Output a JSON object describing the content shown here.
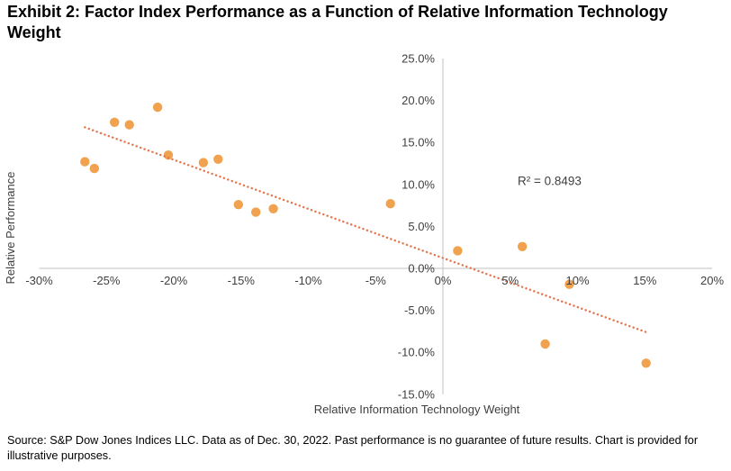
{
  "title": "Exhibit 2: Factor Index Performance as a Function of Relative Information Technology Weight",
  "source_note": "Source: S&P Dow Jones Indices LLC. Data as of Dec. 30, 2022. Past performance is no guarantee of future results. Chart is provided for illustrative purposes.",
  "chart_data": {
    "type": "scatter",
    "title": "Exhibit 2: Factor Index Performance as a Function of Relative Information Technology Weight",
    "xlabel": "Relative Information Technology Weight",
    "ylabel": "Relative Performance",
    "xlim": [
      -30,
      20
    ],
    "ylim": [
      -15,
      25
    ],
    "grid": false,
    "legend": "none",
    "x_ticks": [
      {
        "value": -30,
        "label": "-30%"
      },
      {
        "value": -25,
        "label": "-25%"
      },
      {
        "value": -20,
        "label": "-20%"
      },
      {
        "value": -15,
        "label": "-15%"
      },
      {
        "value": -10,
        "label": "-10%"
      },
      {
        "value": -5,
        "label": "-5%"
      },
      {
        "value": 0,
        "label": "0%"
      },
      {
        "value": 5,
        "label": "5%"
      },
      {
        "value": 10,
        "label": "10%"
      },
      {
        "value": 15,
        "label": "15%"
      },
      {
        "value": 20,
        "label": "20%"
      }
    ],
    "y_ticks": [
      {
        "value": 25,
        "label": "25.0%"
      },
      {
        "value": 20,
        "label": "20.0%"
      },
      {
        "value": 15,
        "label": "15.0%"
      },
      {
        "value": 10,
        "label": "10.0%"
      },
      {
        "value": 5,
        "label": "5.0%"
      },
      {
        "value": 0,
        "label": "0.0%"
      },
      {
        "value": -5,
        "label": "-5.0%"
      },
      {
        "value": -10,
        "label": "-10.0%"
      },
      {
        "value": -15,
        "label": "-15.0%"
      }
    ],
    "points": [
      {
        "x": -26.6,
        "y": 12.7
      },
      {
        "x": -25.9,
        "y": 11.9
      },
      {
        "x": -24.4,
        "y": 17.4
      },
      {
        "x": -23.3,
        "y": 17.1
      },
      {
        "x": -21.2,
        "y": 19.2
      },
      {
        "x": -20.4,
        "y": 13.5
      },
      {
        "x": -17.8,
        "y": 12.6
      },
      {
        "x": -16.7,
        "y": 13.0
      },
      {
        "x": -15.2,
        "y": 7.6
      },
      {
        "x": -13.9,
        "y": 6.7
      },
      {
        "x": -12.6,
        "y": 7.1
      },
      {
        "x": -3.9,
        "y": 7.7
      },
      {
        "x": 1.1,
        "y": 2.1
      },
      {
        "x": 5.9,
        "y": 2.6
      },
      {
        "x": 9.4,
        "y": -1.9
      },
      {
        "x": 7.6,
        "y": -9.0
      },
      {
        "x": 15.1,
        "y": -11.3
      }
    ],
    "trendline": {
      "type": "linear",
      "style": "dotted",
      "x1": -26.6,
      "y1": 16.8,
      "x2": 15.1,
      "y2": -7.6
    },
    "r_squared_label": "R² = 0.8493",
    "r_squared_value": 0.8493,
    "annotation_xy": [
      5.55,
      10.4
    ],
    "colors": {
      "marker": "#F0A24E",
      "trend": "#E4764E",
      "axis": "#C0C0C0",
      "tick_text": "#3f3f3f"
    }
  }
}
